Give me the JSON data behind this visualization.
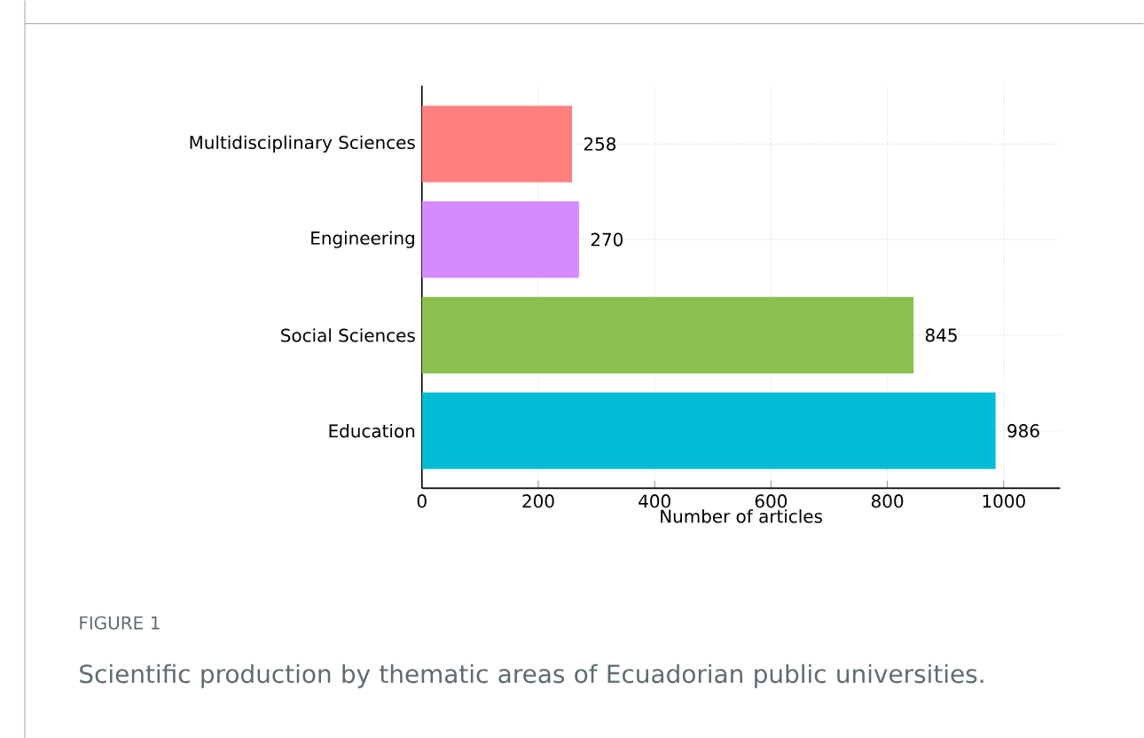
{
  "chart_data": {
    "type": "bar",
    "orientation": "horizontal",
    "categories": [
      "Multidisciplinary Sciences",
      "Engineering",
      "Social Sciences",
      "Education"
    ],
    "values": [
      258,
      270,
      845,
      986
    ],
    "colors": [
      "#ff7f7f",
      "#d58bff",
      "#8cc04f",
      "#00bcd4"
    ],
    "xlabel": "Number of articles",
    "xlim": [
      0,
      1097
    ],
    "xticks": [
      0,
      200,
      400,
      600,
      800,
      1000
    ],
    "grid": true,
    "data_labels": true,
    "annotations": [
      "FIGURE 1",
      "Scientific production by thematic areas of Ecuadorian public universities."
    ]
  }
}
